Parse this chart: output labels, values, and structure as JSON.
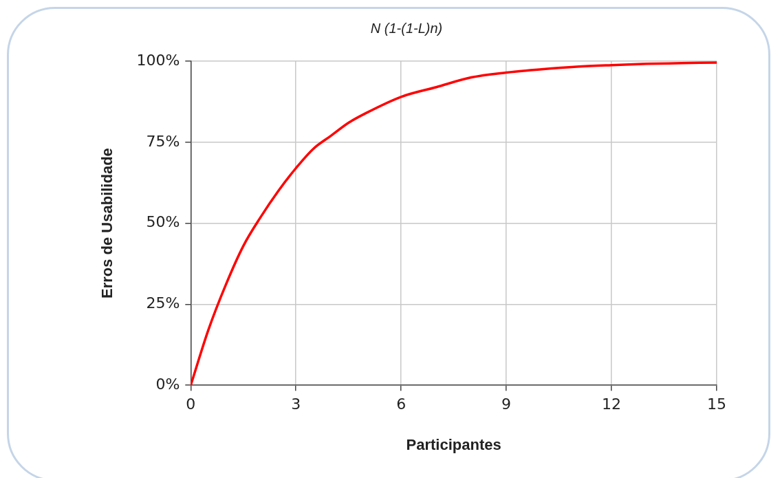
{
  "chart_data": {
    "type": "line",
    "title": "N (1-(1-L)n)",
    "xlabel": "Participantes",
    "ylabel": "Erros de Usabilidade",
    "x": [
      0,
      0.5,
      1,
      1.5,
      2,
      2.5,
      3,
      3.5,
      4,
      4.5,
      5,
      6,
      7,
      8,
      9,
      10,
      11,
      12,
      13,
      14,
      15
    ],
    "series": [
      {
        "color": "#ff0000",
        "values": [
          0,
          17,
          31,
          43,
          52,
          60,
          67,
          73,
          77,
          81,
          84,
          89,
          92,
          95,
          96.5,
          97.5,
          98.3,
          98.8,
          99.2,
          99.4,
          99.6
        ]
      }
    ],
    "xlim": [
      0,
      15
    ],
    "xticks": [
      0,
      3,
      6,
      9,
      12,
      15
    ],
    "ylim": [
      0,
      100
    ],
    "yticks": [
      {
        "value": 0,
        "label": "0%"
      },
      {
        "value": 25,
        "label": "25%"
      },
      {
        "value": 50,
        "label": "50%"
      },
      {
        "value": 75,
        "label": "75%"
      },
      {
        "value": 100,
        "label": "100%"
      }
    ],
    "grid": true,
    "marker": "none",
    "line_style": "solid"
  }
}
